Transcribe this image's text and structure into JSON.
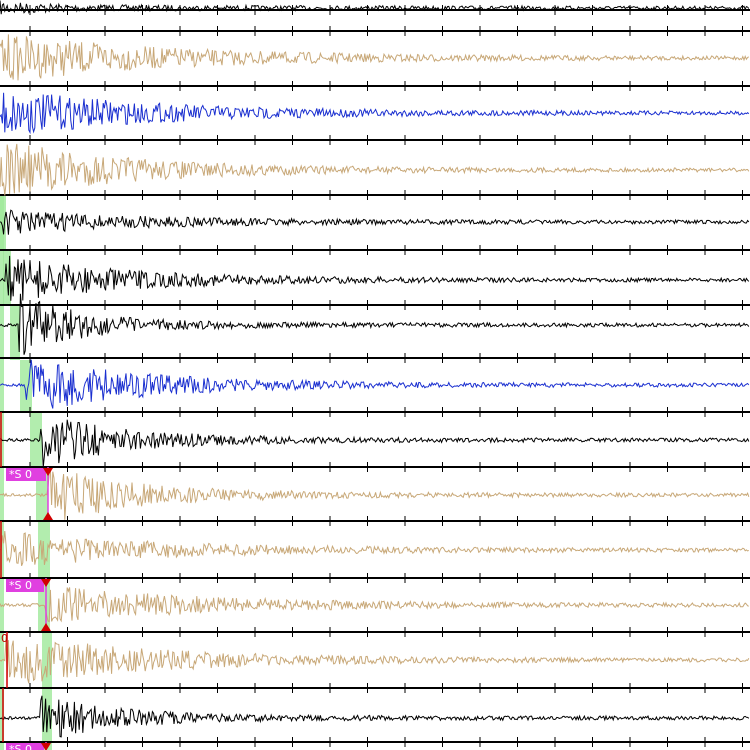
{
  "pick_labels": [
    "*S 0",
    "*S 0",
    "*S 0"
  ],
  "channel_label": "0"
}
